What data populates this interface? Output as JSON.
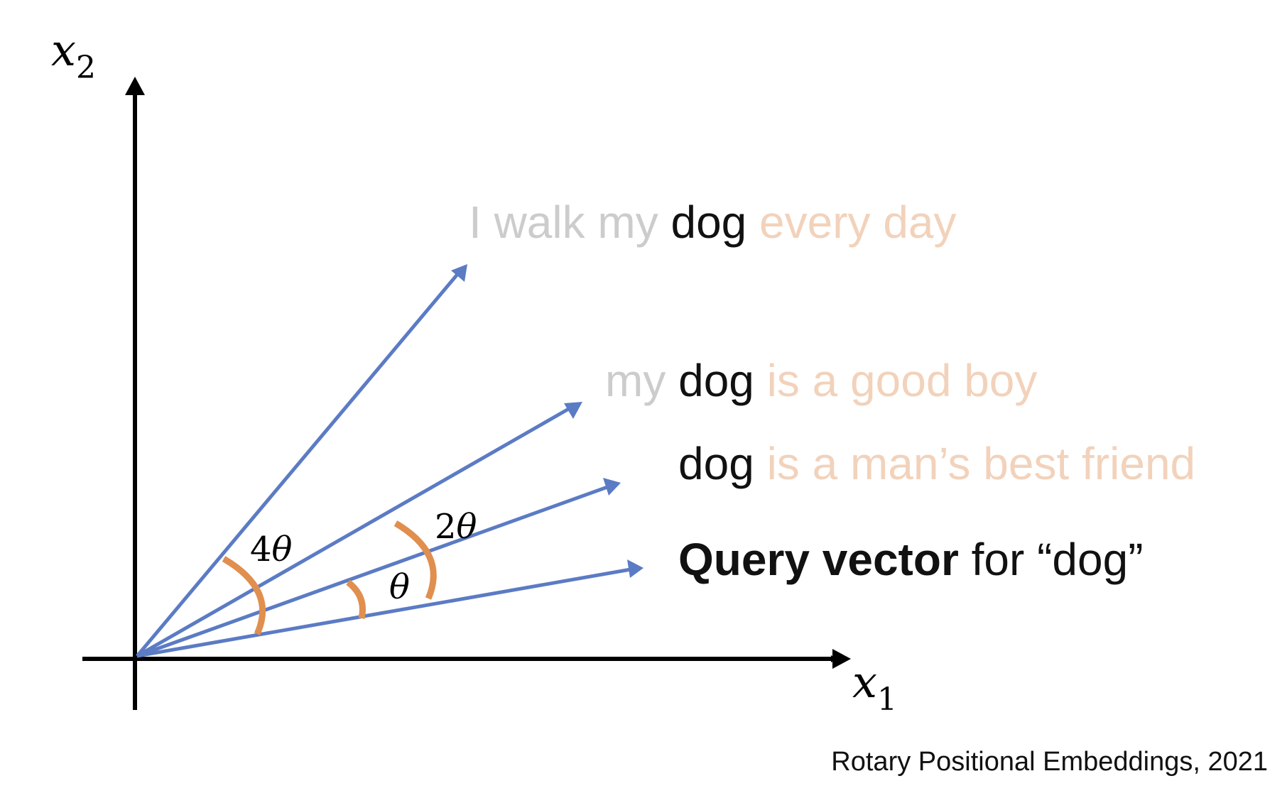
{
  "axes": {
    "x_label": {
      "base": "x",
      "sub": "1"
    },
    "y_label": {
      "base": "x",
      "sub": "2"
    }
  },
  "colors": {
    "axis": "#000000",
    "vector": "#5b7bc4",
    "arc": "#e08f4f",
    "context_faded_gray": "#cccccc",
    "context_faded_orange": "#f2d2bb",
    "focus_text": "#111111",
    "background": "#ffffff"
  },
  "vectors": [
    {
      "id": "query",
      "rotation_multiple": 0
    },
    {
      "id": "man-best-friend",
      "rotation_multiple": 1
    },
    {
      "id": "good-boy",
      "rotation_multiple": 2
    },
    {
      "id": "walk-every-day",
      "rotation_multiple": 4
    }
  ],
  "sentences": {
    "walk": {
      "before": "I walk my ",
      "focus": "dog",
      "after": " every day"
    },
    "good_boy": {
      "before": "my ",
      "focus": "dog",
      "after": " is a good boy"
    },
    "best_friend": {
      "before": "",
      "focus": "dog",
      "after": " is a man’s best friend"
    },
    "query": {
      "bold": "Query vector",
      "rest": " for “dog”"
    }
  },
  "angles": {
    "theta": {
      "coef": "",
      "symbol": "θ"
    },
    "two_theta": {
      "coef": "2",
      "symbol": "θ"
    },
    "four_theta": {
      "coef": "4",
      "symbol": "θ"
    }
  },
  "caption": "Rotary Positional Embeddings, 2021"
}
